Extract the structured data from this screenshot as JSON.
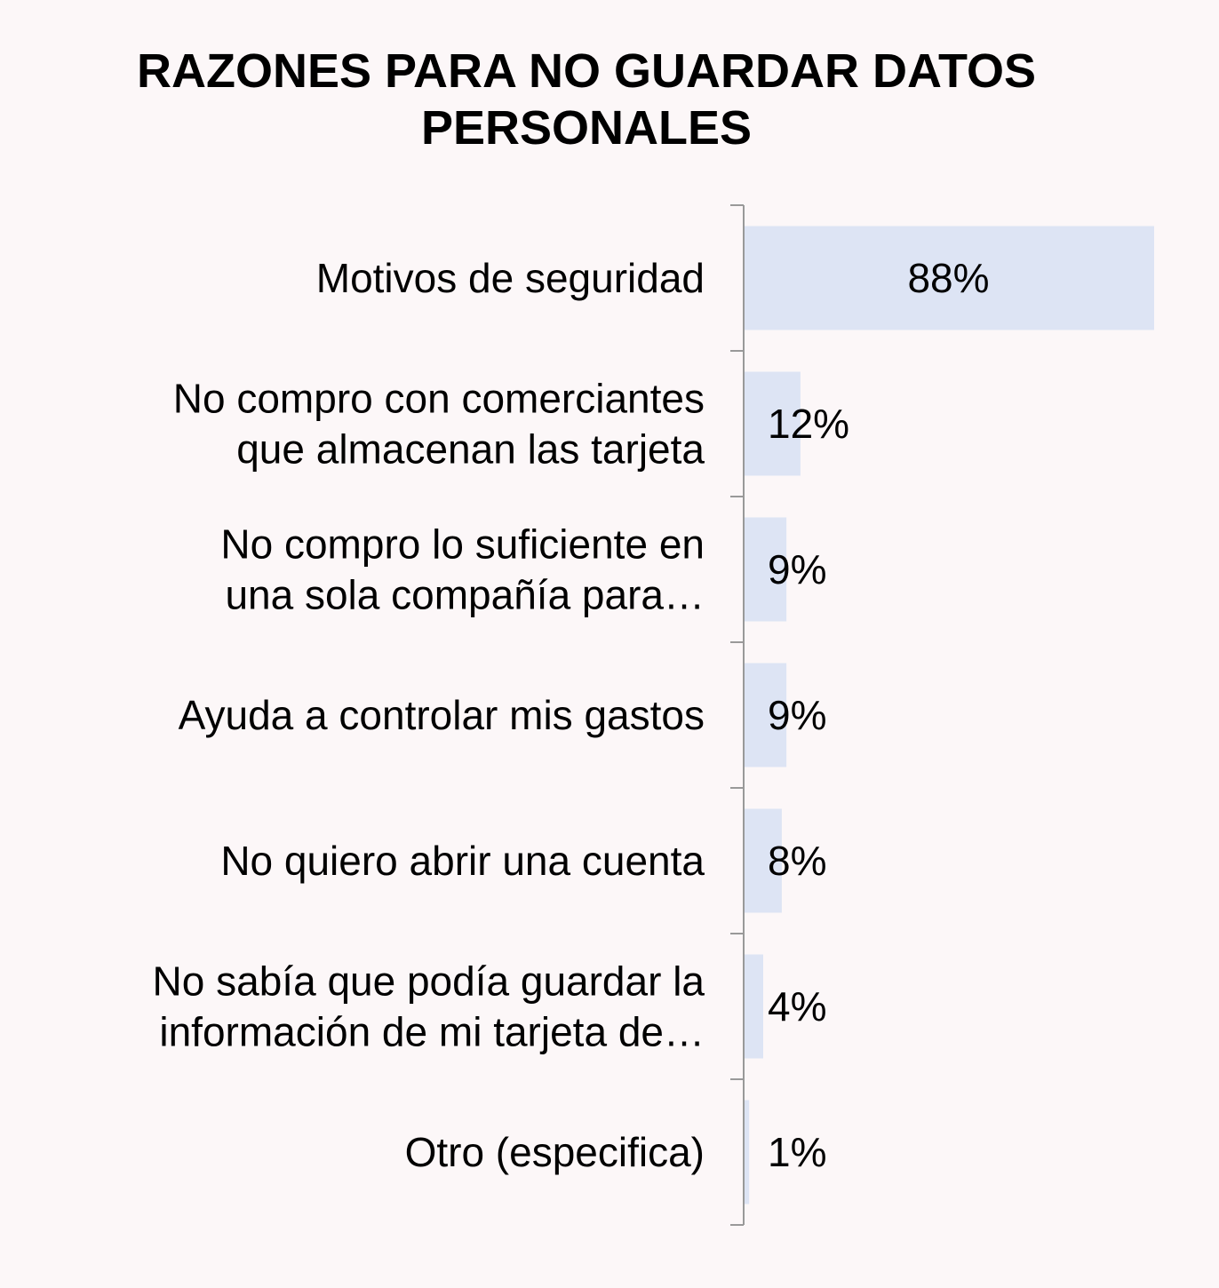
{
  "chart_data": {
    "type": "bar",
    "orientation": "horizontal",
    "title_lines": [
      "RAZONES PARA NO GUARDAR DATOS",
      "PERSONALES"
    ],
    "categories": [
      [
        "Motivos de seguridad"
      ],
      [
        "No compro con comerciantes",
        "que almacenan las tarjeta"
      ],
      [
        "No compro lo suficiente en",
        "una sola compañía para…"
      ],
      [
        "Ayuda a controlar mis gastos"
      ],
      [
        "No quiero abrir una cuenta"
      ],
      [
        "No sabía que podía guardar la",
        "información de mi tarjeta de…"
      ],
      [
        "Otro (especifica)"
      ]
    ],
    "values": [
      88,
      12,
      9,
      9,
      8,
      4,
      1
    ],
    "value_labels": [
      "88%",
      "12%",
      "9%",
      "9%",
      "8%",
      "4%",
      "1%"
    ],
    "unit": "%",
    "xlim": [
      0,
      88
    ],
    "grid": false,
    "legend": "none",
    "colors": {
      "bar": "#dde4f4",
      "axis": "#999999",
      "background": "#fcf7f8"
    }
  }
}
